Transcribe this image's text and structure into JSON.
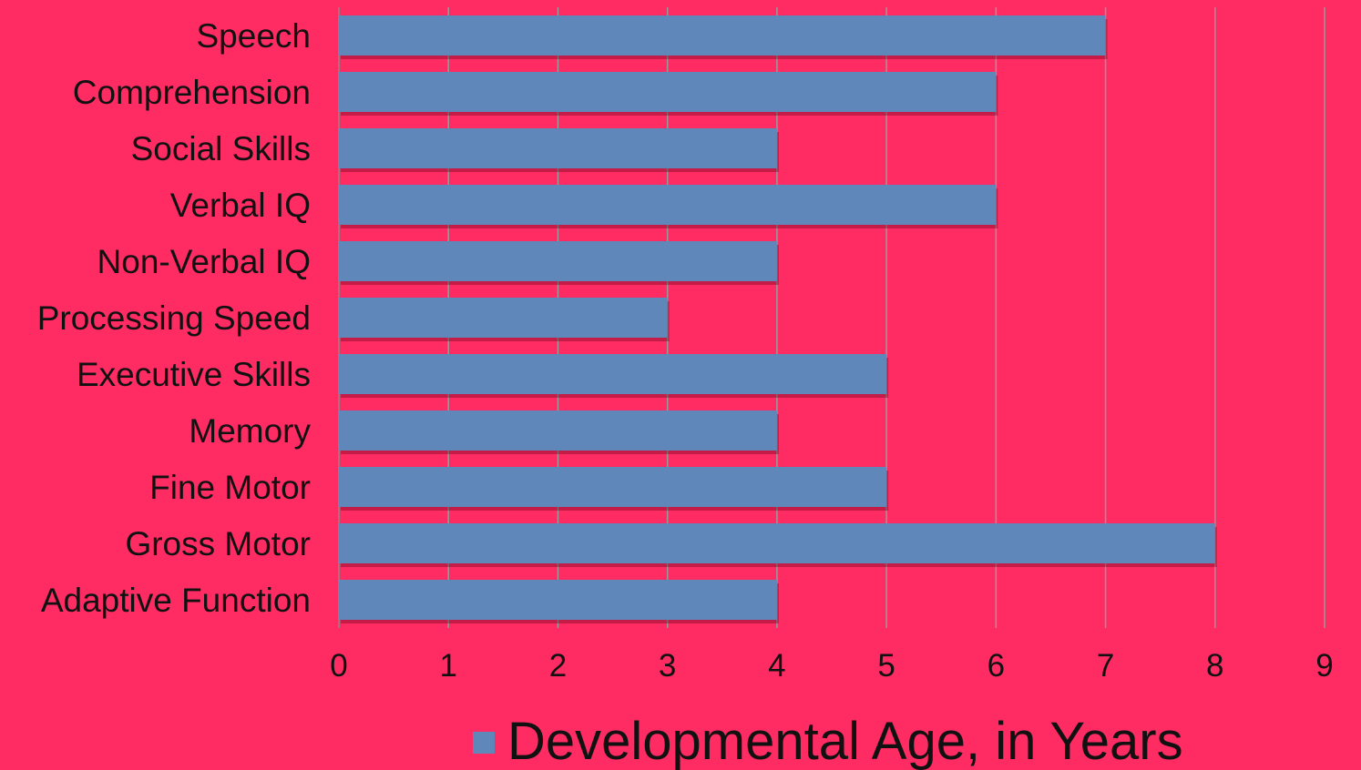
{
  "chart_data": {
    "type": "bar",
    "orientation": "horizontal",
    "categories": [
      "Speech",
      "Comprehension",
      "Social Skills",
      "Verbal IQ",
      "Non-Verbal IQ",
      "Processing Speed",
      "Executive Skills",
      "Memory",
      "Fine Motor",
      "Gross Motor",
      "Adaptive Function"
    ],
    "series": [
      {
        "name": "Developmental Age, in Years",
        "values": [
          7,
          6,
          4,
          6,
          4,
          3,
          5,
          4,
          5,
          8,
          4
        ],
        "color": "#5f87ba"
      }
    ],
    "xlim": [
      0,
      9
    ],
    "xticks": [
      "0",
      "1",
      "2",
      "3",
      "4",
      "5",
      "6",
      "7",
      "8",
      "9"
    ],
    "grid": true,
    "legend": "bottom",
    "background": "#ff2b63"
  }
}
